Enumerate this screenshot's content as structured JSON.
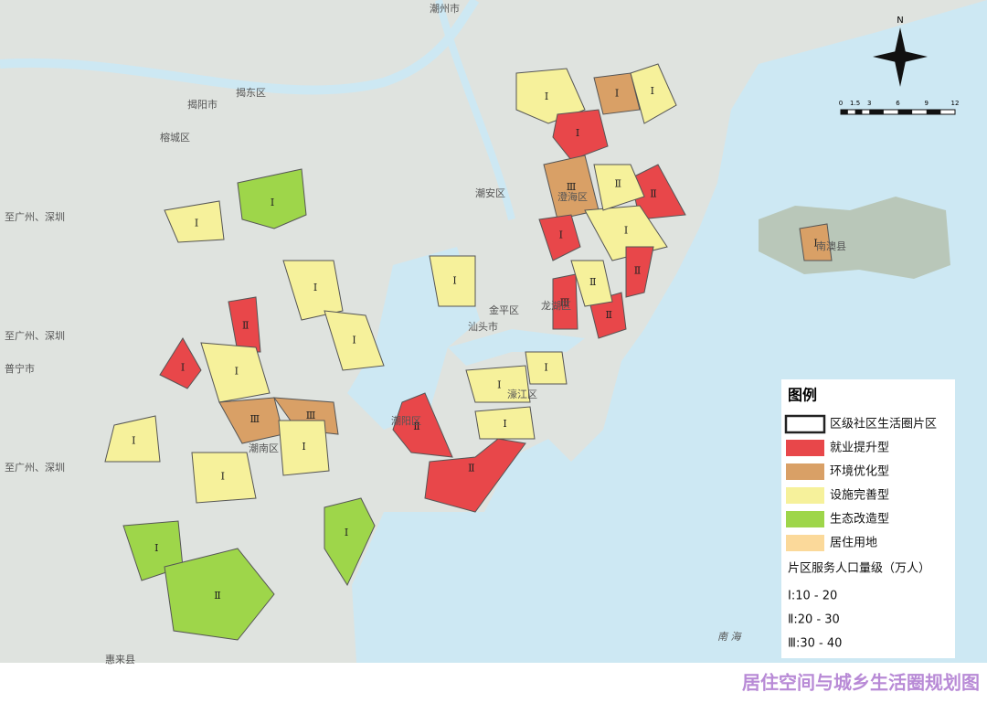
{
  "map": {
    "place_labels": [
      "潮州市",
      "揭阳市",
      "揭东区",
      "榕城区",
      "潮安区",
      "至广州、深圳",
      "至广州、深圳",
      "普宁市",
      "至广州、深圳",
      "惠来县",
      "澄海区",
      "金平区",
      "龙湖区",
      "汕头市",
      "濠江区",
      "潮阳区",
      "潮南区",
      "南澳县"
    ],
    "zones": [
      {
        "label": "Ⅰ",
        "color": "#f6f19b"
      },
      {
        "label": "Ⅰ",
        "color": "#e8474a"
      },
      {
        "label": "Ⅱ",
        "color": "#e8474a"
      },
      {
        "label": "Ⅲ",
        "color": "#d9a066"
      },
      {
        "label": "Ⅰ",
        "color": "#f6f19b"
      },
      {
        "label": "Ⅱ",
        "color": "#f6f19b"
      },
      {
        "label": "Ⅰ",
        "color": "#9ed64a"
      },
      {
        "label": "Ⅰ",
        "color": "#f6f19b"
      },
      {
        "label": "Ⅱ",
        "color": "#e8474a"
      },
      {
        "label": "Ⅰ",
        "color": "#f6f19b"
      },
      {
        "label": "Ⅰ",
        "color": "#e8474a"
      },
      {
        "label": "Ⅰ",
        "color": "#f6f19b"
      },
      {
        "label": "Ⅲ",
        "color": "#d9a066"
      },
      {
        "label": "Ⅰ",
        "color": "#f6f19b"
      },
      {
        "label": "Ⅲ",
        "color": "#d9a066"
      },
      {
        "label": "Ⅱ",
        "color": "#e8474a"
      },
      {
        "label": "Ⅱ",
        "color": "#e8474a"
      },
      {
        "label": "Ⅰ",
        "color": "#9ed64a"
      },
      {
        "label": "Ⅰ",
        "color": "#9ed64a"
      },
      {
        "label": "Ⅱ",
        "color": "#9ed64a"
      },
      {
        "label": "Ⅰ",
        "color": "#f6f19b"
      },
      {
        "label": "Ⅰ",
        "color": "#f6f19b"
      },
      {
        "label": "Ⅰ",
        "color": "#f6f19b"
      },
      {
        "label": "Ⅰ",
        "color": "#f6f19b"
      },
      {
        "label": "Ⅲ",
        "color": "#e8474a"
      },
      {
        "label": "Ⅱ",
        "color": "#e8474a"
      },
      {
        "label": "Ⅱ",
        "color": "#e8474a"
      },
      {
        "label": "Ⅰ",
        "color": "#e8474a"
      },
      {
        "label": "Ⅱ",
        "color": "#f6f19b"
      },
      {
        "label": "Ⅰ",
        "color": "#f6f19b"
      },
      {
        "label": "Ⅰ",
        "color": "#f6f19b"
      },
      {
        "label": "Ⅰ",
        "color": "#f6f19b"
      },
      {
        "label": "Ⅰ",
        "color": "#d9a066"
      },
      {
        "label": "Ⅰ",
        "color": "#f6f19b"
      },
      {
        "label": "Ⅰ",
        "color": "#d9a066"
      }
    ],
    "compass": "N",
    "scale_ticks": [
      0,
      1.5,
      3,
      6,
      9,
      12
    ],
    "sea_label": "南 海"
  },
  "legend": {
    "title": "图例",
    "items": [
      {
        "label": "区级社区生活圈片区",
        "color": "#ffffff"
      },
      {
        "label": "就业提升型",
        "color": "#e8474a"
      },
      {
        "label": "环境优化型",
        "color": "#d9a066"
      },
      {
        "label": "设施完善型",
        "color": "#f6f19b"
      },
      {
        "label": "生态改造型",
        "color": "#9ed64a"
      },
      {
        "label": "居住用地",
        "color": "#fbd99a"
      }
    ],
    "population_title": "片区服务人口量级（万人）",
    "population_levels": [
      "Ⅰ:10 - 20",
      "Ⅱ:20 - 30",
      "Ⅲ:30 - 40"
    ]
  },
  "title": "居住空间与城乡生活圈规划图"
}
